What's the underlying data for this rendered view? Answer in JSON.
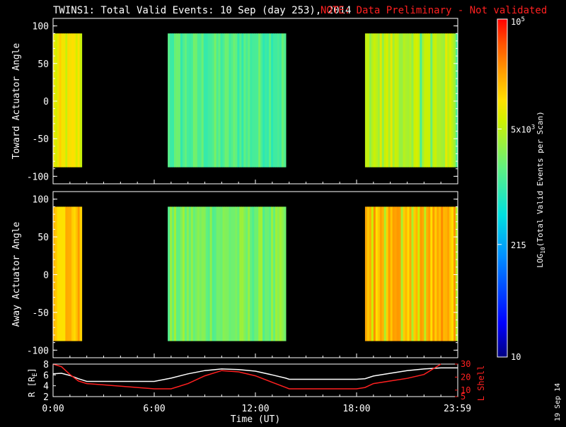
{
  "header": {
    "title": "TWINS1: Total Valid Events: 10 Sep (day 253), 2014",
    "note": "NOTE: Data Preliminary - Not validated"
  },
  "footer": {
    "date_stamp": "19 Sep 14"
  },
  "colors": {
    "background": "#000000",
    "axes": "#ffffff",
    "note": "#ff2020",
    "r_line": "#ffffff",
    "lshell_line": "#ff2020"
  },
  "chart_data": [
    {
      "type": "heatmap",
      "panel": "toward",
      "ylabel": "Toward Actuator Angle",
      "xlim": [
        0,
        24
      ],
      "ylim": [
        -110,
        110
      ],
      "y_ticks": [
        100,
        50,
        0,
        -50,
        -100
      ],
      "data_y_range": [
        -88,
        90
      ],
      "segments": [
        {
          "start": 0.0,
          "end": 1.7,
          "level": 3.9
        },
        {
          "start": 6.8,
          "end": 13.8,
          "level": 3.15
        },
        {
          "start": 18.5,
          "end": 24.0,
          "level": 3.7
        }
      ]
    },
    {
      "type": "heatmap",
      "panel": "away",
      "ylabel": "Away Actuator Angle",
      "xlim": [
        0,
        24
      ],
      "ylim": [
        -110,
        110
      ],
      "y_ticks": [
        100,
        50,
        0,
        -50,
        -100
      ],
      "data_y_range": [
        -88,
        90
      ],
      "segments": [
        {
          "start": 0.0,
          "end": 1.7,
          "level": 4.2
        },
        {
          "start": 6.8,
          "end": 13.8,
          "level": 3.35
        },
        {
          "start": 18.5,
          "end": 24.0,
          "level": 4.25
        }
      ]
    },
    {
      "type": "line",
      "panel": "orbit",
      "xlabel": "Time (UT)",
      "ylabel_left": "R [R_E]",
      "ylabel_right": "L Shell",
      "x_ticks": [
        "0:00",
        "6:00",
        "12:00",
        "18:00",
        "23:59"
      ],
      "x_tick_values": [
        0,
        6,
        12,
        18,
        23.98
      ],
      "ylim_left": [
        2,
        8
      ],
      "ylim_right": [
        5,
        30
      ],
      "left_ticks": [
        8,
        6,
        4,
        2
      ],
      "right_ticks": [
        30,
        20,
        10,
        5
      ],
      "series": [
        {
          "axis": "left",
          "x": [
            0,
            0.5,
            1,
            1.5,
            2,
            3,
            4,
            5,
            6,
            7,
            8,
            9,
            10,
            11,
            12,
            13,
            13.8,
            14,
            15,
            16,
            17,
            18,
            18.5,
            19,
            20,
            21,
            22,
            23,
            24
          ],
          "y": [
            6.2,
            6.3,
            5.9,
            5.3,
            4.8,
            4.8,
            4.8,
            4.8,
            4.8,
            5.4,
            6.2,
            6.8,
            7.1,
            7.0,
            6.7,
            6.0,
            5.4,
            5.2,
            5.2,
            5.2,
            5.2,
            5.2,
            5.3,
            5.8,
            6.3,
            6.8,
            7.1,
            7.3,
            7.3
          ]
        },
        {
          "axis": "right",
          "x": [
            0,
            0.5,
            1,
            1.5,
            2,
            3,
            4,
            5,
            6,
            7,
            8,
            9,
            10,
            11,
            12,
            13,
            13.8,
            14,
            15,
            16,
            17,
            18,
            18.5,
            19,
            20,
            21,
            22,
            23
          ],
          "y": [
            30,
            28,
            22,
            17,
            15,
            14,
            13,
            12,
            11,
            11,
            15,
            21,
            25,
            24,
            21,
            16,
            12,
            11,
            11,
            11,
            11,
            11,
            12,
            15,
            17,
            19,
            22,
            30
          ]
        }
      ]
    },
    {
      "type": "colorbar",
      "label": "LOG10(Total Valid Events per Scan)",
      "scale": "log",
      "range": [
        10,
        100000
      ],
      "ticks": [
        {
          "value": 100000,
          "label": "10^5"
        },
        {
          "value": 5000,
          "label": "5x10^3"
        },
        {
          "value": 215,
          "label": "215"
        },
        {
          "value": 10,
          "label": "10"
        }
      ]
    }
  ]
}
